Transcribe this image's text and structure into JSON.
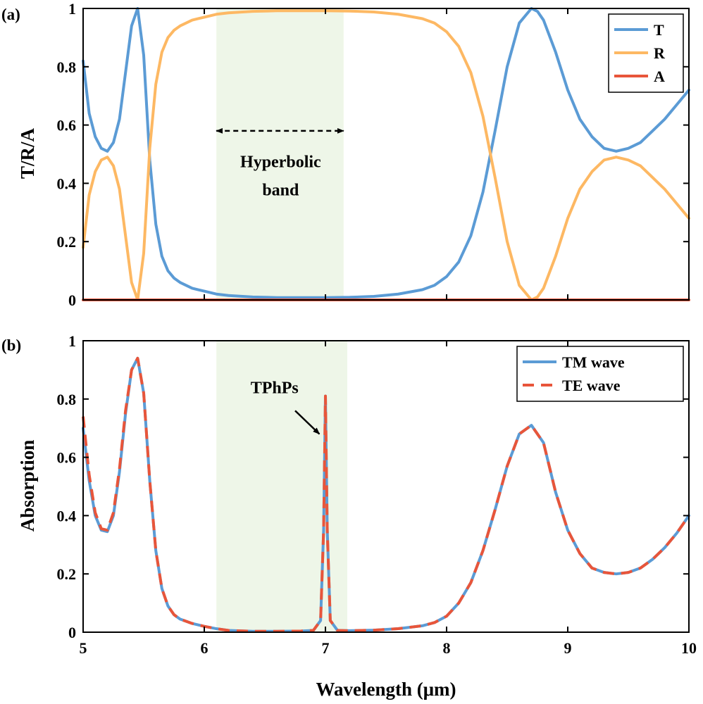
{
  "chart_data": [
    {
      "panel": "(a)",
      "type": "line",
      "title": "",
      "xlabel": "",
      "ylabel": "T/R/A",
      "xlim": [
        5,
        10
      ],
      "ylim": [
        0,
        1
      ],
      "xticks": [
        5,
        6,
        7,
        8,
        9,
        10
      ],
      "yticks": [
        0,
        0.2,
        0.4,
        0.6,
        0.8,
        1
      ],
      "ytick_labels": [
        "0",
        "0.2",
        "0.4",
        "0.6",
        "0.8",
        "1"
      ],
      "show_xtick_labels": false,
      "grid": false,
      "legend": "top-right",
      "shaded_band": {
        "x0": 6.1,
        "x1": 7.15,
        "color": "#eef6e8"
      },
      "annotations": [
        {
          "text_lines": [
            "Hyperbolic",
            "band"
          ],
          "x": 6.63,
          "y": 0.455
        },
        {
          "arrow": "double",
          "x0": 6.1,
          "x1": 7.15,
          "y": 0.58
        }
      ],
      "series": [
        {
          "name": "T",
          "color": "#5b9bd5",
          "style": "solid",
          "x": [
            5.0,
            5.05,
            5.1,
            5.15,
            5.2,
            5.25,
            5.3,
            5.35,
            5.4,
            5.45,
            5.5,
            5.55,
            5.6,
            5.65,
            5.7,
            5.75,
            5.8,
            5.85,
            5.9,
            5.95,
            6.0,
            6.1,
            6.2,
            6.4,
            6.6,
            6.8,
            7.0,
            7.2,
            7.4,
            7.6,
            7.8,
            7.9,
            8.0,
            8.1,
            8.2,
            8.3,
            8.4,
            8.5,
            8.6,
            8.7,
            8.75,
            8.8,
            8.9,
            9.0,
            9.1,
            9.2,
            9.3,
            9.4,
            9.5,
            9.6,
            9.7,
            9.8,
            9.9,
            10.0
          ],
          "y": [
            0.82,
            0.64,
            0.56,
            0.52,
            0.51,
            0.54,
            0.62,
            0.78,
            0.94,
            1.0,
            0.84,
            0.48,
            0.26,
            0.15,
            0.1,
            0.075,
            0.06,
            0.05,
            0.04,
            0.035,
            0.03,
            0.02,
            0.015,
            0.01,
            0.008,
            0.008,
            0.008,
            0.009,
            0.012,
            0.02,
            0.035,
            0.05,
            0.08,
            0.13,
            0.22,
            0.37,
            0.58,
            0.8,
            0.95,
            1.0,
            0.99,
            0.96,
            0.85,
            0.72,
            0.62,
            0.56,
            0.52,
            0.51,
            0.52,
            0.54,
            0.58,
            0.62,
            0.67,
            0.72
          ]
        },
        {
          "name": "R",
          "color": "#fdb863",
          "style": "solid",
          "x": [
            5.0,
            5.05,
            5.1,
            5.15,
            5.2,
            5.25,
            5.3,
            5.35,
            5.4,
            5.45,
            5.5,
            5.55,
            5.6,
            5.65,
            5.7,
            5.75,
            5.8,
            5.85,
            5.9,
            5.95,
            6.0,
            6.1,
            6.2,
            6.4,
            6.6,
            6.8,
            7.0,
            7.2,
            7.4,
            7.6,
            7.8,
            7.9,
            8.0,
            8.1,
            8.2,
            8.3,
            8.4,
            8.5,
            8.6,
            8.7,
            8.75,
            8.8,
            8.9,
            9.0,
            9.1,
            9.2,
            9.3,
            9.4,
            9.5,
            9.6,
            9.7,
            9.8,
            9.9,
            10.0
          ],
          "y": [
            0.18,
            0.36,
            0.44,
            0.48,
            0.49,
            0.46,
            0.38,
            0.22,
            0.06,
            0.0,
            0.16,
            0.52,
            0.74,
            0.85,
            0.9,
            0.925,
            0.94,
            0.95,
            0.96,
            0.965,
            0.97,
            0.98,
            0.985,
            0.99,
            0.992,
            0.992,
            0.992,
            0.991,
            0.988,
            0.98,
            0.965,
            0.95,
            0.92,
            0.87,
            0.78,
            0.63,
            0.42,
            0.2,
            0.05,
            0.0,
            0.01,
            0.04,
            0.15,
            0.28,
            0.38,
            0.44,
            0.48,
            0.49,
            0.48,
            0.46,
            0.42,
            0.38,
            0.33,
            0.28
          ]
        },
        {
          "name": "A",
          "color": "#e8553a",
          "style": "solid",
          "x": [
            5.0,
            10.0
          ],
          "y": [
            0.0,
            0.0
          ]
        }
      ]
    },
    {
      "panel": "(b)",
      "type": "line",
      "title": "",
      "xlabel": "Wavelength (μm)",
      "ylabel": "Absorption",
      "xlim": [
        5,
        10
      ],
      "ylim": [
        0,
        1
      ],
      "xticks": [
        5,
        6,
        7,
        8,
        9,
        10
      ],
      "yticks": [
        0,
        0.2,
        0.4,
        0.6,
        0.8,
        1
      ],
      "ytick_labels": [
        "0",
        "0.2",
        "0.4",
        "0.6",
        "0.8",
        "1"
      ],
      "show_xtick_labels": true,
      "grid": false,
      "legend": "top-right",
      "shaded_band": {
        "x0": 6.1,
        "x1": 7.18,
        "color": "#eef6e8"
      },
      "annotations": [
        {
          "text_lines": [
            "TPhPs"
          ],
          "x": 6.58,
          "y": 0.82
        },
        {
          "arrow": "single",
          "x0": 6.75,
          "y0": 0.76,
          "x1": 6.95,
          "y1": 0.68
        }
      ],
      "series": [
        {
          "name": "TM wave",
          "color": "#5b9bd5",
          "style": "solid",
          "x": [
            5.0,
            5.05,
            5.1,
            5.15,
            5.2,
            5.25,
            5.3,
            5.35,
            5.4,
            5.45,
            5.5,
            5.55,
            5.6,
            5.65,
            5.7,
            5.75,
            5.8,
            5.9,
            6.0,
            6.1,
            6.2,
            6.4,
            6.6,
            6.8,
            6.9,
            6.96,
            6.985,
            7.0,
            7.015,
            7.04,
            7.1,
            7.2,
            7.4,
            7.6,
            7.8,
            7.9,
            8.0,
            8.1,
            8.2,
            8.3,
            8.4,
            8.5,
            8.6,
            8.7,
            8.8,
            8.9,
            9.0,
            9.1,
            9.2,
            9.3,
            9.4,
            9.5,
            9.6,
            9.7,
            9.8,
            9.9,
            10.0
          ],
          "y": [
            0.7,
            0.52,
            0.4,
            0.35,
            0.345,
            0.4,
            0.55,
            0.75,
            0.9,
            0.94,
            0.82,
            0.52,
            0.28,
            0.15,
            0.09,
            0.06,
            0.045,
            0.03,
            0.02,
            0.012,
            0.006,
            0.003,
            0.003,
            0.004,
            0.006,
            0.04,
            0.35,
            0.81,
            0.35,
            0.04,
            0.006,
            0.005,
            0.007,
            0.012,
            0.022,
            0.033,
            0.055,
            0.1,
            0.17,
            0.28,
            0.42,
            0.57,
            0.68,
            0.71,
            0.65,
            0.48,
            0.35,
            0.27,
            0.22,
            0.205,
            0.2,
            0.205,
            0.22,
            0.25,
            0.29,
            0.34,
            0.4
          ]
        },
        {
          "name": "TE wave",
          "color": "#e8553a",
          "style": "dashed",
          "x": [
            5.0,
            5.05,
            5.1,
            5.15,
            5.2,
            5.25,
            5.3,
            5.35,
            5.4,
            5.45,
            5.5,
            5.55,
            5.6,
            5.65,
            5.7,
            5.75,
            5.8,
            5.9,
            6.0,
            6.1,
            6.2,
            6.4,
            6.6,
            6.8,
            6.9,
            6.96,
            6.985,
            7.0,
            7.015,
            7.04,
            7.1,
            7.2,
            7.4,
            7.6,
            7.8,
            7.9,
            8.0,
            8.1,
            8.2,
            8.3,
            8.4,
            8.5,
            8.6,
            8.7,
            8.8,
            8.9,
            9.0,
            9.1,
            9.2,
            9.3,
            9.4,
            9.5,
            9.6,
            9.7,
            9.8,
            9.9,
            10.0
          ],
          "y": [
            0.74,
            0.54,
            0.41,
            0.355,
            0.35,
            0.41,
            0.56,
            0.76,
            0.9,
            0.94,
            0.82,
            0.52,
            0.28,
            0.15,
            0.09,
            0.06,
            0.045,
            0.03,
            0.02,
            0.012,
            0.006,
            0.003,
            0.003,
            0.004,
            0.006,
            0.04,
            0.35,
            0.81,
            0.35,
            0.04,
            0.006,
            0.005,
            0.007,
            0.012,
            0.022,
            0.033,
            0.055,
            0.1,
            0.17,
            0.28,
            0.42,
            0.57,
            0.68,
            0.71,
            0.65,
            0.48,
            0.35,
            0.27,
            0.22,
            0.205,
            0.2,
            0.205,
            0.22,
            0.25,
            0.29,
            0.34,
            0.4
          ]
        }
      ]
    }
  ]
}
